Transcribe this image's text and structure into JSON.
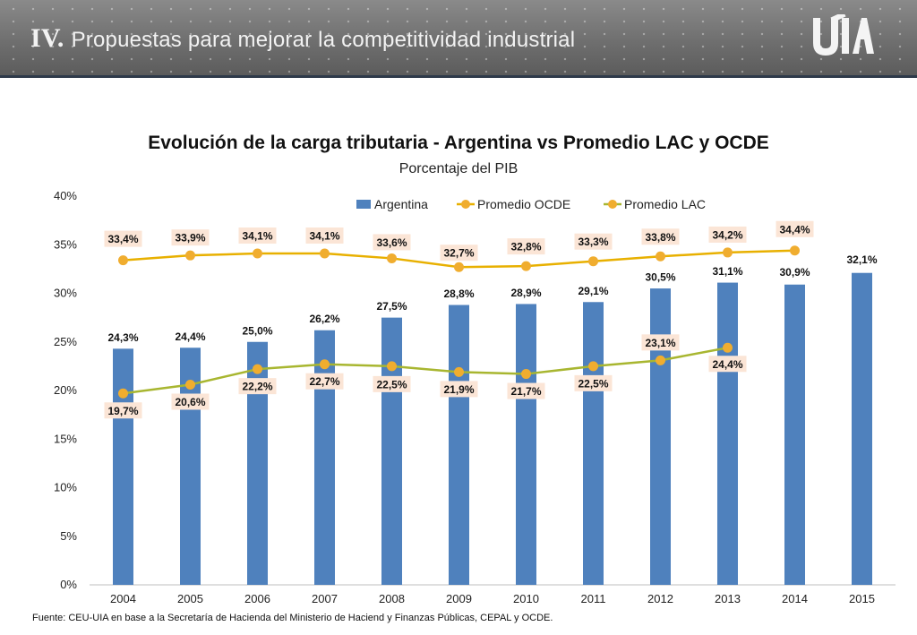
{
  "header": {
    "numeral": "IV.",
    "title": "Propuestas para mejorar la competitividad industrial",
    "logo": "UIA logo"
  },
  "source_note": "Fuente: CEU-UIA en base a la Secretaría de Hacienda del Ministerio de Haciend y Finanzas Públicas, CEPAL y OCDE.",
  "colors": {
    "argentina": "#4f81bd",
    "ocde": "#f0ad2f",
    "lac": "#f0ad2f",
    "ocde_line": "#e8b000",
    "lac_line": "#a8b630",
    "label_bg": "#fbe5d6"
  },
  "chart_data": {
    "type": "bar",
    "title": "Evolución de la carga tributaria - Argentina vs Promedio LAC y OCDE",
    "subtitle": "Porcentaje del PIB",
    "categories": [
      "2004",
      "2005",
      "2006",
      "2007",
      "2008",
      "2009",
      "2010",
      "2011",
      "2012",
      "2013",
      "2014",
      "2015"
    ],
    "ylim": [
      0,
      40
    ],
    "yticks": [
      0,
      5,
      10,
      15,
      20,
      25,
      30,
      35,
      40
    ],
    "ytick_labels": [
      "0%",
      "5%",
      "10%",
      "15%",
      "20%",
      "25%",
      "30%",
      "35%",
      "40%"
    ],
    "legend_position": "top",
    "grid": false,
    "series": [
      {
        "name": "Argentina",
        "type": "bar",
        "values": [
          24.3,
          24.4,
          25.0,
          26.2,
          27.5,
          28.8,
          28.9,
          29.1,
          30.5,
          31.1,
          30.9,
          32.1
        ],
        "labels": [
          "24,3%",
          "24,4%",
          "25,0%",
          "26,2%",
          "27,5%",
          "28,8%",
          "28,9%",
          "29,1%",
          "30,5%",
          "31,1%",
          "30,9%",
          "32,1%"
        ]
      },
      {
        "name": "Promedio OCDE",
        "type": "line",
        "values": [
          33.4,
          33.9,
          34.1,
          34.1,
          33.6,
          32.7,
          32.8,
          33.3,
          33.8,
          34.2,
          34.4,
          null
        ],
        "labels": [
          "33,4%",
          "33,9%",
          "34,1%",
          "34,1%",
          "33,6%",
          "32,7%",
          "32,8%",
          "33,3%",
          "33,8%",
          "34,2%",
          "34,4%",
          ""
        ]
      },
      {
        "name": "Promedio LAC",
        "type": "line",
        "values": [
          19.7,
          20.6,
          22.2,
          22.7,
          22.5,
          21.9,
          21.7,
          22.5,
          23.1,
          24.4,
          null,
          null
        ],
        "labels": [
          "19,7%",
          "20,6%",
          "22,2%",
          "22,7%",
          "22,5%",
          "21,9%",
          "21,7%",
          "22,5%",
          "23,1%",
          "24,4%",
          "",
          ""
        ]
      }
    ]
  }
}
